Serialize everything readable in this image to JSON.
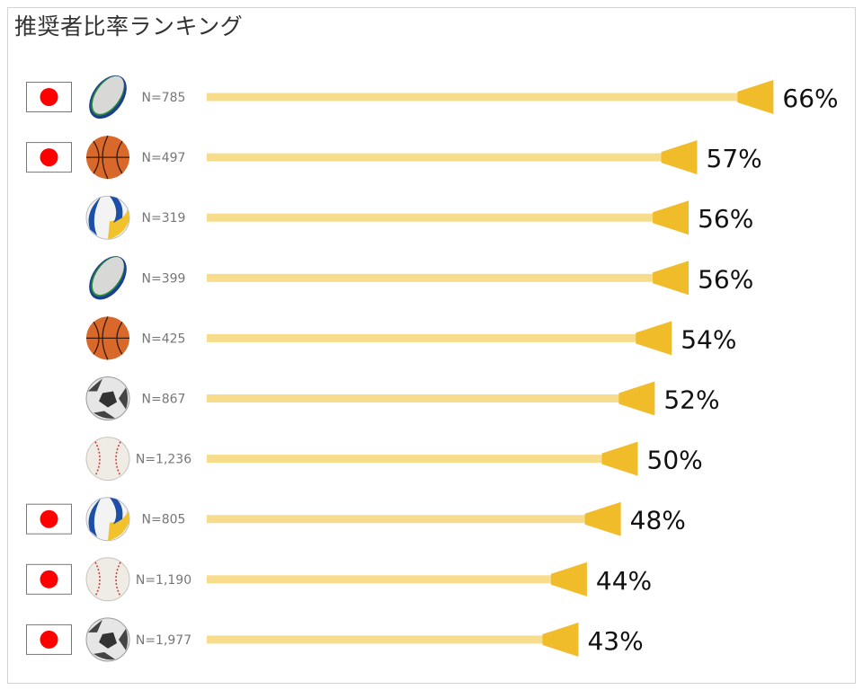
{
  "chart_data": {
    "type": "bar",
    "title": "推奨者比率ランキング",
    "value_unit": "%",
    "colors": {
      "bar": "#f7dc8c",
      "arrow": "#f0bc2a",
      "flag_red": "#ff0000"
    },
    "rows": [
      {
        "sport_icon": "rugby-ball",
        "japan_flag": true,
        "n_label": "N=785",
        "value": 66,
        "value_label": "66%"
      },
      {
        "sport_icon": "basketball",
        "japan_flag": true,
        "n_label": "N=497",
        "value": 57,
        "value_label": "57%"
      },
      {
        "sport_icon": "volleyball",
        "japan_flag": false,
        "n_label": "N=319",
        "value": 56,
        "value_label": "56%"
      },
      {
        "sport_icon": "rugby-ball",
        "japan_flag": false,
        "n_label": "N=399",
        "value": 56,
        "value_label": "56%"
      },
      {
        "sport_icon": "basketball",
        "japan_flag": false,
        "n_label": "N=425",
        "value": 54,
        "value_label": "54%"
      },
      {
        "sport_icon": "soccer-ball",
        "japan_flag": false,
        "n_label": "N=867",
        "value": 52,
        "value_label": "52%"
      },
      {
        "sport_icon": "baseball",
        "japan_flag": false,
        "n_label": "N=1,236",
        "value": 50,
        "value_label": "50%"
      },
      {
        "sport_icon": "volleyball",
        "japan_flag": true,
        "n_label": "N=805",
        "value": 48,
        "value_label": "48%"
      },
      {
        "sport_icon": "baseball",
        "japan_flag": true,
        "n_label": "N=1,190",
        "value": 44,
        "value_label": "44%"
      },
      {
        "sport_icon": "soccer-ball",
        "japan_flag": true,
        "n_label": "N=1,977",
        "value": 43,
        "value_label": "43%"
      }
    ]
  }
}
